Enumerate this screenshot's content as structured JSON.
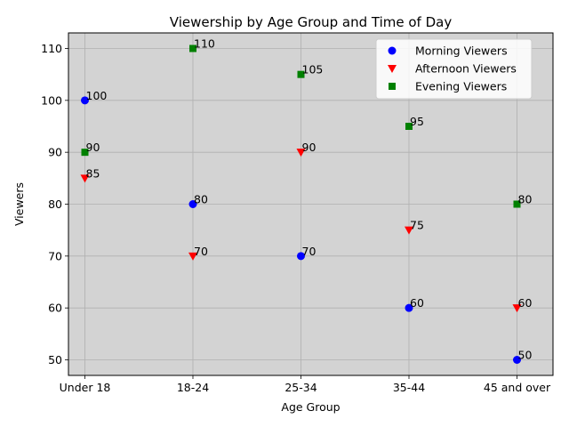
{
  "chart_data": {
    "type": "scatter",
    "title": "Viewership by Age Group and Time of Day",
    "xlabel": "Age Group",
    "ylabel": "Viewers",
    "categories": [
      "Under 18",
      "18-24",
      "25-34",
      "35-44",
      "45 and over"
    ],
    "ylim": [
      47,
      113
    ],
    "yticks": [
      50,
      60,
      70,
      80,
      90,
      100,
      110
    ],
    "grid": true,
    "background": "#d3d3d3",
    "legend_position": "top-right",
    "series": [
      {
        "name": "Morning Viewers",
        "color": "#0000ff",
        "marker": "circle",
        "values": [
          100,
          80,
          70,
          60,
          50
        ]
      },
      {
        "name": "Afternoon Viewers",
        "color": "#ff0000",
        "marker": "triangle-down",
        "values": [
          85,
          70,
          90,
          75,
          60
        ]
      },
      {
        "name": "Evening Viewers",
        "color": "#008000",
        "marker": "square",
        "values": [
          90,
          110,
          105,
          95,
          80
        ]
      }
    ]
  }
}
